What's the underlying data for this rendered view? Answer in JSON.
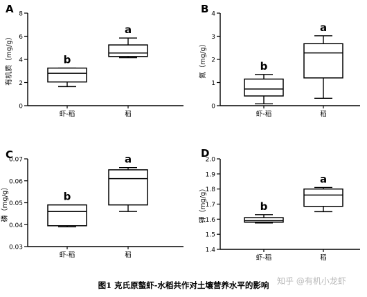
{
  "caption": "图1 克氏原螯虾-水稻共作对土壤营养水平的影响",
  "watermark": "知乎 @有机小龙虾",
  "chart_data": [
    {
      "panel": "A",
      "type": "box",
      "ylabel": "有机质（mg/g）",
      "ylim": [
        0,
        8
      ],
      "yticks": [
        "0",
        "2",
        "4",
        "6",
        "8"
      ],
      "categories": [
        "虾-稻",
        "稻"
      ],
      "boxes": [
        {
          "min": 1.65,
          "q1": 2.05,
          "median": 2.8,
          "q3": 3.25,
          "max": 3.25,
          "letter": "b"
        },
        {
          "min": 4.15,
          "q1": 4.25,
          "median": 4.55,
          "q3": 5.25,
          "max": 5.85,
          "letter": "a"
        }
      ]
    },
    {
      "panel": "B",
      "type": "box",
      "ylabel": "氮（mg/g）",
      "ylim": [
        0,
        4
      ],
      "yticks": [
        "0",
        "1",
        "2",
        "3",
        "4"
      ],
      "categories": [
        "虾-稻",
        "稻"
      ],
      "boxes": [
        {
          "min": 0.08,
          "q1": 0.42,
          "median": 0.72,
          "q3": 1.15,
          "max": 1.35,
          "letter": "b"
        },
        {
          "min": 0.32,
          "q1": 1.2,
          "median": 2.28,
          "q3": 2.68,
          "max": 3.02,
          "letter": "a"
        }
      ]
    },
    {
      "panel": "C",
      "type": "box",
      "ylabel": "磷（mg/g）",
      "ylim": [
        0.03,
        0.07
      ],
      "yticks": [
        "0.03",
        "0.04",
        "0.05",
        "0.06",
        "0.07"
      ],
      "categories": [
        "虾-稻",
        "稻"
      ],
      "boxes": [
        {
          "min": 0.039,
          "q1": 0.0395,
          "median": 0.046,
          "q3": 0.049,
          "max": 0.049,
          "letter": "b"
        },
        {
          "min": 0.046,
          "q1": 0.049,
          "median": 0.061,
          "q3": 0.065,
          "max": 0.066,
          "letter": "a"
        }
      ]
    },
    {
      "panel": "D",
      "type": "box",
      "ylabel": "钾（mg/g）",
      "ylim": [
        1.4,
        2.0
      ],
      "yticks": [
        "1.4",
        "1.5",
        "1.6",
        "1.7",
        "1.8",
        "1.9",
        "2.0"
      ],
      "categories": [
        "虾-稻",
        "稻"
      ],
      "boxes": [
        {
          "min": 1.575,
          "q1": 1.58,
          "median": 1.59,
          "q3": 1.61,
          "max": 1.63,
          "letter": "b"
        },
        {
          "min": 1.65,
          "q1": 1.685,
          "median": 1.76,
          "q3": 1.8,
          "max": 1.81,
          "letter": "a"
        }
      ]
    }
  ]
}
